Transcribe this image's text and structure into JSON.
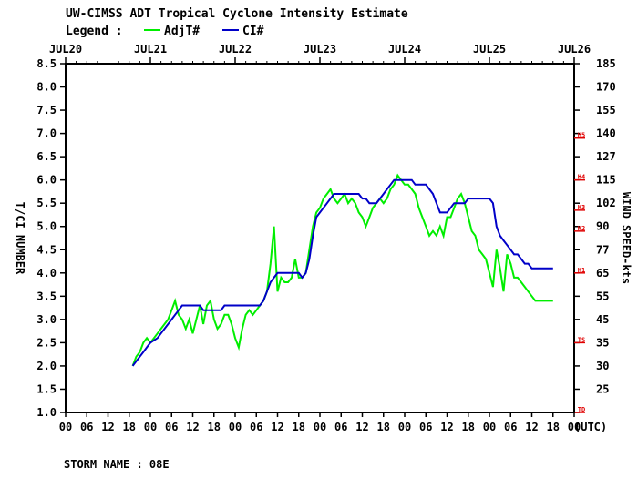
{
  "chart_data": {
    "type": "line",
    "title": "UW-CIMSS ADT Tropical Cyclone Intensity Estimate",
    "legend_label": "Legend :",
    "legend_placement": "top",
    "ylabel_left": "T/CI NUMBER",
    "ylabel_right": "WIND SPEED-kts",
    "utc_label": "(UTC)",
    "storm_name": "STORM NAME : 08E",
    "colors": {
      "adj": "#00ee00",
      "ci": "#0000c8",
      "cat": "#e00000",
      "axis": "#000000"
    },
    "date_labels": [
      "JUL20",
      "JUL21",
      "JUL22",
      "JUL23",
      "JUL24",
      "JUL25",
      "JUL26"
    ],
    "hour_labels": [
      "00",
      "06",
      "12",
      "18",
      "00",
      "06",
      "12",
      "18",
      "00",
      "06",
      "12",
      "18",
      "00",
      "06",
      "12",
      "18",
      "00",
      "06",
      "12",
      "18",
      "00",
      "06",
      "12",
      "18",
      "00"
    ],
    "x_unit": "hours since JUL20 00 UTC",
    "xlim": [
      0,
      144
    ],
    "ylim": [
      1.0,
      8.5
    ],
    "y_ticks": [
      1.0,
      1.5,
      2.0,
      2.5,
      3.0,
      3.5,
      4.0,
      4.5,
      5.0,
      5.5,
      6.0,
      6.5,
      7.0,
      7.5,
      8.0,
      8.5
    ],
    "y_tick_labels": [
      "1.0",
      "1.5",
      "2.0",
      "2.5",
      "3.0",
      "3.5",
      "4.0",
      "4.5",
      "5.0",
      "5.5",
      "6.0",
      "6.5",
      "7.0",
      "7.5",
      "8.0",
      "8.5"
    ],
    "wind_labels": [
      "25",
      "25",
      "30",
      "35",
      "45",
      "55",
      "65",
      "77",
      "90",
      "102",
      "115",
      "127",
      "140",
      "155",
      "170",
      "185"
    ],
    "category_marks": [
      {
        "label": "TD",
        "t": 1.0
      },
      {
        "label": "TS",
        "t": 2.5
      },
      {
        "label": "H1",
        "t": 4.0
      },
      {
        "label": "H2",
        "t": 4.9
      },
      {
        "label": "H3",
        "t": 5.35
      },
      {
        "label": "H4",
        "t": 6.0
      },
      {
        "label": "H5",
        "t": 6.9
      }
    ],
    "grid": false,
    "series": [
      {
        "name": "AdjT#",
        "x": [
          19,
          20,
          21,
          22,
          23,
          24,
          25,
          26,
          27,
          28,
          29,
          30,
          31,
          32,
          33,
          34,
          35,
          36,
          37,
          38,
          39,
          40,
          41,
          42,
          43,
          44,
          45,
          46,
          47,
          48,
          49,
          50,
          51,
          52,
          53,
          54,
          55,
          56,
          57,
          58,
          59,
          60,
          61,
          62,
          63,
          64,
          65,
          66,
          67,
          68,
          69,
          70,
          71,
          72,
          73,
          74,
          75,
          76,
          77,
          78,
          79,
          80,
          81,
          82,
          83,
          84,
          85,
          86,
          87,
          88,
          89,
          90,
          91,
          92,
          93,
          94,
          95,
          96,
          97,
          98,
          99,
          100,
          101,
          102,
          103,
          104,
          105,
          106,
          107,
          108,
          109,
          110,
          111,
          112,
          113,
          114,
          115,
          116,
          117,
          118,
          119,
          120,
          121,
          122,
          123,
          124,
          125,
          126,
          127,
          128,
          129,
          130,
          131,
          132,
          133,
          134,
          135,
          136,
          137,
          138
        ],
        "y": [
          2.0,
          2.2,
          2.3,
          2.5,
          2.6,
          2.5,
          2.6,
          2.7,
          2.8,
          2.9,
          3.0,
          3.2,
          3.4,
          3.1,
          3.0,
          2.8,
          3.0,
          2.7,
          3.0,
          3.3,
          2.9,
          3.3,
          3.4,
          3.0,
          2.8,
          2.9,
          3.1,
          3.1,
          2.9,
          2.6,
          2.4,
          2.8,
          3.1,
          3.2,
          3.1,
          3.2,
          3.3,
          3.4,
          3.6,
          4.2,
          5.0,
          3.6,
          3.9,
          3.8,
          3.8,
          3.9,
          4.3,
          3.9,
          3.9,
          4.0,
          4.5,
          5.0,
          5.3,
          5.4,
          5.6,
          5.7,
          5.8,
          5.6,
          5.5,
          5.6,
          5.7,
          5.5,
          5.6,
          5.5,
          5.3,
          5.2,
          5.0,
          5.2,
          5.4,
          5.5,
          5.6,
          5.5,
          5.6,
          5.8,
          5.9,
          6.1,
          6.0,
          5.9,
          5.9,
          5.8,
          5.7,
          5.4,
          5.2,
          5.0,
          4.8,
          4.9,
          4.8,
          5.0,
          4.8,
          5.2,
          5.2,
          5.4,
          5.6,
          5.7,
          5.5,
          5.2,
          4.9,
          4.8,
          4.5,
          4.4,
          4.3,
          4.0,
          3.7,
          4.5,
          4.1,
          3.6,
          4.4,
          4.2,
          3.9,
          3.9,
          3.8,
          3.7,
          3.6,
          3.5,
          3.4,
          3.4,
          3.4,
          3.4,
          3.4,
          3.4
        ],
        "n_points": 0
      },
      {
        "name": "CI#",
        "x": [
          19,
          20,
          21,
          22,
          23,
          24,
          25,
          26,
          27,
          28,
          29,
          30,
          31,
          32,
          33,
          34,
          35,
          36,
          37,
          38,
          39,
          40,
          41,
          42,
          43,
          44,
          45,
          46,
          47,
          48,
          49,
          50,
          51,
          52,
          53,
          54,
          55,
          56,
          57,
          58,
          59,
          60,
          61,
          62,
          63,
          64,
          65,
          66,
          67,
          68,
          69,
          70,
          71,
          72,
          73,
          74,
          75,
          76,
          77,
          78,
          79,
          80,
          81,
          82,
          83,
          84,
          85,
          86,
          87,
          88,
          89,
          90,
          91,
          92,
          93,
          94,
          95,
          96,
          97,
          98,
          99,
          100,
          101,
          102,
          103,
          104,
          105,
          106,
          107,
          108,
          109,
          110,
          111,
          112,
          113,
          114,
          115,
          116,
          117,
          118,
          119,
          120,
          121,
          122,
          123,
          124,
          125,
          126,
          127,
          128,
          129,
          130,
          131,
          132,
          133,
          134,
          135,
          136,
          137,
          138
        ],
        "y": [
          2.0,
          2.1,
          2.2,
          2.3,
          2.4,
          2.5,
          2.55,
          2.6,
          2.7,
          2.8,
          2.9,
          3.0,
          3.1,
          3.2,
          3.3,
          3.3,
          3.3,
          3.3,
          3.3,
          3.3,
          3.2,
          3.2,
          3.2,
          3.2,
          3.2,
          3.2,
          3.3,
          3.3,
          3.3,
          3.3,
          3.3,
          3.3,
          3.3,
          3.3,
          3.3,
          3.3,
          3.3,
          3.4,
          3.6,
          3.8,
          3.9,
          4.0,
          4.0,
          4.0,
          4.0,
          4.0,
          4.0,
          4.0,
          3.9,
          4.0,
          4.3,
          4.8,
          5.2,
          5.3,
          5.4,
          5.5,
          5.6,
          5.7,
          5.7,
          5.7,
          5.7,
          5.7,
          5.7,
          5.7,
          5.7,
          5.6,
          5.6,
          5.5,
          5.5,
          5.5,
          5.6,
          5.7,
          5.8,
          5.9,
          6.0,
          6.0,
          6.0,
          6.0,
          6.0,
          6.0,
          5.9,
          5.9,
          5.9,
          5.9,
          5.8,
          5.7,
          5.5,
          5.3,
          5.3,
          5.3,
          5.4,
          5.5,
          5.5,
          5.5,
          5.5,
          5.6,
          5.6,
          5.6,
          5.6,
          5.6,
          5.6,
          5.6,
          5.5,
          5.0,
          4.8,
          4.7,
          4.6,
          4.5,
          4.4,
          4.4,
          4.3,
          4.2,
          4.2,
          4.1,
          4.1,
          4.1,
          4.1,
          4.1,
          4.1,
          4.1
        ],
        "n_points": 0
      }
    ]
  }
}
